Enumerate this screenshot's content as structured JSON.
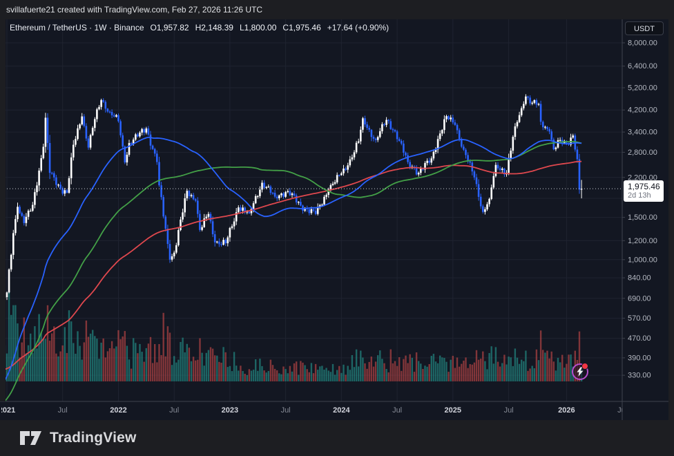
{
  "frame": {
    "top_bar_text": "svillafuerte21 created with TradingView.com, Feb 27, 2026 11:26 UTC",
    "brand": "TradingView"
  },
  "header": {
    "title_line": "Ethereum / TetherUS · 1W · Binance",
    "ohlc": {
      "o": {
        "k": "O",
        "v": "1,957.82"
      },
      "h": {
        "k": "H",
        "v": "2,148.39"
      },
      "l": {
        "k": "L",
        "v": "1,800.00"
      },
      "c": {
        "k": "C",
        "v": "1,975.46"
      }
    },
    "change": "+17.64 (+0.90%)"
  },
  "price_scale": {
    "currency_label": "USDT",
    "ticks": [
      {
        "label": "8,000.00",
        "value": 8000
      },
      {
        "label": "6,400.00",
        "value": 6400
      },
      {
        "label": "5,200.00",
        "value": 5200
      },
      {
        "label": "4,200.00",
        "value": 4200
      },
      {
        "label": "3,400.00",
        "value": 3400
      },
      {
        "label": "2,800.00",
        "value": 2800
      },
      {
        "label": "2,200.00",
        "value": 2200
      },
      {
        "label": "1,500.00",
        "value": 1500
      },
      {
        "label": "1,200.00",
        "value": 1200
      },
      {
        "label": "1,000.00",
        "value": 1000
      },
      {
        "label": "840.00",
        "value": 840
      },
      {
        "label": "690.00",
        "value": 690
      },
      {
        "label": "570.00",
        "value": 570
      },
      {
        "label": "470.00",
        "value": 470
      },
      {
        "label": "390.00",
        "value": 390
      },
      {
        "label": "330.00",
        "value": 330
      }
    ],
    "grid_extra_values": [
      1800
    ],
    "last_price_label": {
      "price": "1,975.46",
      "countdown": "2d 13h"
    }
  },
  "time_scale": {
    "labels": [
      {
        "text": "2021",
        "week": 209,
        "major": true
      },
      {
        "text": "Jul",
        "week": 235,
        "major": false
      },
      {
        "text": "2022",
        "week": 261,
        "major": true
      },
      {
        "text": "Jul",
        "week": 287,
        "major": false
      },
      {
        "text": "2023",
        "week": 313,
        "major": true
      },
      {
        "text": "Jul",
        "week": 339,
        "major": false
      },
      {
        "text": "2024",
        "week": 365,
        "major": true
      },
      {
        "text": "Jul",
        "week": 391,
        "major": false
      },
      {
        "text": "2025",
        "week": 417,
        "major": true
      },
      {
        "text": "Jul",
        "week": 443,
        "major": false
      },
      {
        "text": "2026",
        "week": 470,
        "major": true
      },
      {
        "text": "Jul",
        "week": 496,
        "major": false
      }
    ]
  },
  "chart_data": {
    "type": "candlestick",
    "symbol": "Ethereum / TetherUS",
    "interval": "1W",
    "exchange": "Binance",
    "scale": "log",
    "ylim": [
      300,
      8600
    ],
    "current_price": 1975.46,
    "countdown": "2d 13h",
    "last_candle": {
      "open": 1957.82,
      "high": 2148.39,
      "low": 1800.0,
      "close": 1975.46
    },
    "first_visible_week": 206,
    "last_week": 477,
    "weeks_epoch": "2017-01-01",
    "close_anchors": [
      [
        0,
        8
      ],
      [
        8,
        20
      ],
      [
        21,
        300
      ],
      [
        35,
        300
      ],
      [
        48,
        650
      ],
      [
        54,
        1350
      ],
      [
        58,
        900
      ],
      [
        65,
        500
      ],
      [
        69,
        700
      ],
      [
        87,
        280
      ],
      [
        101,
        110
      ],
      [
        115,
        160
      ],
      [
        129,
        300
      ],
      [
        154,
        145
      ],
      [
        167,
        120
      ],
      [
        187,
        390
      ],
      [
        196,
        355
      ],
      [
        204,
        600
      ],
      [
        209,
        730
      ],
      [
        212,
        1290
      ],
      [
        214,
        1660
      ],
      [
        217,
        1420
      ],
      [
        221,
        1690
      ],
      [
        226,
        2950
      ],
      [
        227,
        3900
      ],
      [
        229,
        2300
      ],
      [
        234,
        1980
      ],
      [
        237,
        1900
      ],
      [
        240,
        3010
      ],
      [
        244,
        3950
      ],
      [
        247,
        2930
      ],
      [
        250,
        3850
      ],
      [
        253,
        4620
      ],
      [
        257,
        4120
      ],
      [
        261,
        3770
      ],
      [
        264,
        2540
      ],
      [
        266,
        3060
      ],
      [
        274,
        3520
      ],
      [
        279,
        2550
      ],
      [
        280,
        2040
      ],
      [
        285,
        1000
      ],
      [
        287,
        1070
      ],
      [
        293,
        1935
      ],
      [
        297,
        1760
      ],
      [
        299,
        1330
      ],
      [
        303,
        1550
      ],
      [
        306,
        1180
      ],
      [
        311,
        1170
      ],
      [
        317,
        1650
      ],
      [
        322,
        1560
      ],
      [
        328,
        2090
      ],
      [
        334,
        1830
      ],
      [
        340,
        1930
      ],
      [
        346,
        1680
      ],
      [
        353,
        1550
      ],
      [
        359,
        1960
      ],
      [
        365,
        2290
      ],
      [
        368,
        2470
      ],
      [
        373,
        3110
      ],
      [
        375,
        3880
      ],
      [
        377,
        3540
      ],
      [
        381,
        3150
      ],
      [
        386,
        3820
      ],
      [
        390,
        3420
      ],
      [
        396,
        2550
      ],
      [
        401,
        2300
      ],
      [
        407,
        2640
      ],
      [
        410,
        3180
      ],
      [
        414,
        3960
      ],
      [
        418,
        3640
      ],
      [
        422,
        2870
      ],
      [
        427,
        2200
      ],
      [
        431,
        1580
      ],
      [
        434,
        1790
      ],
      [
        437,
        2480
      ],
      [
        442,
        2300
      ],
      [
        446,
        3590
      ],
      [
        450,
        4450
      ],
      [
        451,
        4780
      ],
      [
        454,
        4500
      ],
      [
        457,
        4450
      ],
      [
        458,
        3750
      ],
      [
        462,
        3420
      ],
      [
        464,
        2880
      ],
      [
        467,
        3150
      ],
      [
        470,
        3050
      ],
      [
        473,
        3290
      ],
      [
        475,
        2620
      ],
      [
        476,
        1957.82
      ],
      [
        477,
        1975.46
      ]
    ],
    "overlays": [
      {
        "name": "ma-fast",
        "window": 50,
        "color": "#2962ff"
      },
      {
        "name": "ma-mid",
        "window": 100,
        "color": "#43a047"
      },
      {
        "name": "ma-slow",
        "window": 175,
        "color": "#e0484e"
      }
    ],
    "volume_profile": [
      [
        206,
        58
      ],
      [
        240,
        48
      ],
      [
        262,
        44
      ],
      [
        292,
        34
      ],
      [
        316,
        22
      ],
      [
        368,
        30
      ],
      [
        402,
        26
      ],
      [
        420,
        30
      ],
      [
        446,
        34
      ],
      [
        472,
        34
      ]
    ],
    "colors": {
      "up": "#ffffff",
      "down": "#2962ff",
      "vol_up": "rgba(38,166,154,0.55)",
      "vol_down": "rgba(239,83,80,0.5)",
      "background": "#131722",
      "grid": "#1f2330",
      "axis_line": "#3f434e",
      "axis_text": "#b4b8c1",
      "axis_text_major": "#d2d4dc",
      "axis_text_minor": "#868b96",
      "dotted_price_line": "#cfd2da",
      "label_bg": "#ffffff",
      "lightning_ring": "#b84ecf",
      "alert_dot": "#f23645"
    }
  }
}
